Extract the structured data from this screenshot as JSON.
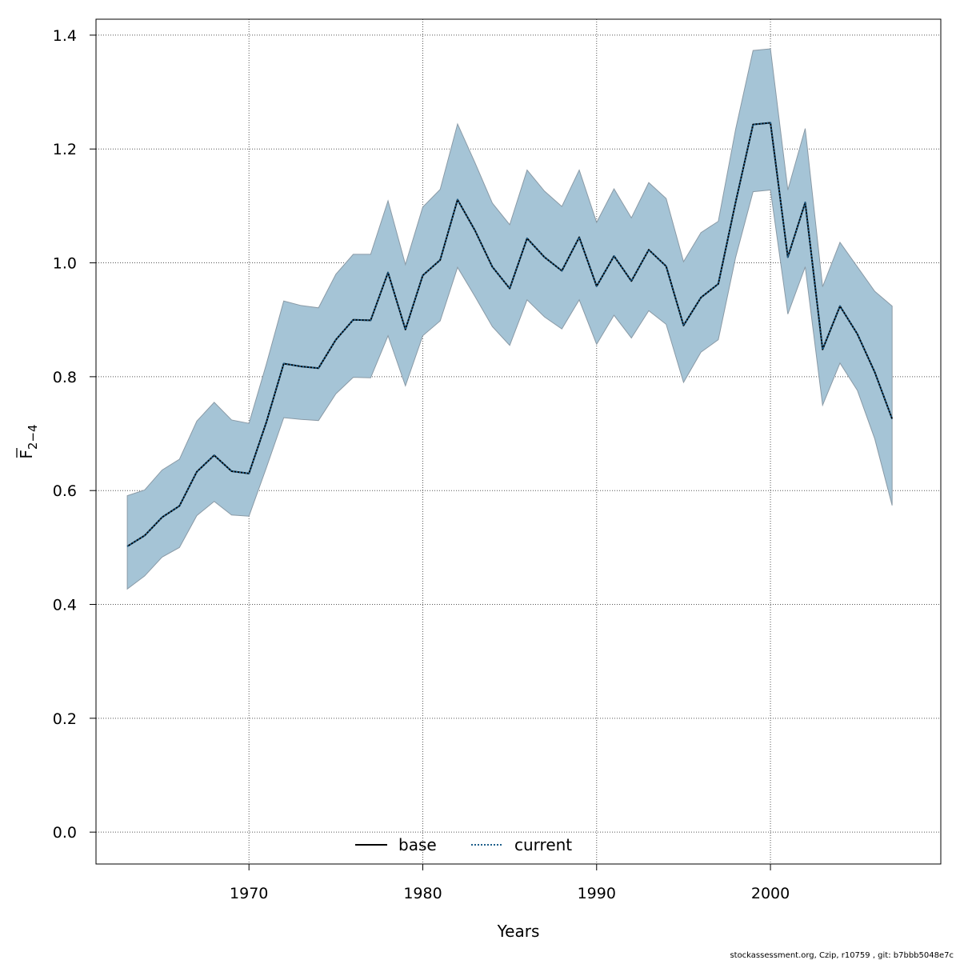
{
  "chart_data": {
    "type": "line",
    "xlabel": "Years",
    "ylabel": "F",
    "ylabel_subscript": "2−4",
    "xlim": [
      1961.2,
      2009.8
    ],
    "ylim": [
      -0.056,
      1.428
    ],
    "x_ticks": [
      1970,
      1980,
      1990,
      2000
    ],
    "y_ticks": [
      0.0,
      0.2,
      0.4,
      0.6,
      0.8,
      1.0,
      1.2,
      1.4
    ],
    "y_tick_labels": [
      "0.0",
      "0.2",
      "0.4",
      "0.6",
      "0.8",
      "1.0",
      "1.2",
      "1.4"
    ],
    "grid": true,
    "legend_position": "bottom-center",
    "x": [
      1963,
      1964,
      1965,
      1966,
      1967,
      1968,
      1969,
      1970,
      1971,
      1972,
      1973,
      1974,
      1975,
      1976,
      1977,
      1978,
      1979,
      1980,
      1981,
      1982,
      1983,
      1984,
      1985,
      1986,
      1987,
      1988,
      1989,
      1990,
      1991,
      1992,
      1993,
      1994,
      1995,
      1996,
      1997,
      1998,
      1999,
      2000,
      2001,
      2002,
      2003,
      2004,
      2005,
      2006,
      2007
    ],
    "series": [
      {
        "name": "base",
        "style": "solid",
        "color": "#000000",
        "values": [
          0.502,
          0.521,
          0.553,
          0.573,
          0.633,
          0.662,
          0.634,
          0.63,
          0.72,
          0.823,
          0.818,
          0.815,
          0.865,
          0.9,
          0.899,
          0.983,
          0.883,
          0.978,
          1.005,
          1.111,
          1.057,
          0.993,
          0.955,
          1.043,
          1.01,
          0.986,
          1.045,
          0.959,
          1.012,
          0.968,
          1.023,
          0.994,
          0.89,
          0.939,
          0.963,
          1.107,
          1.243,
          1.246,
          1.01,
          1.106,
          0.848,
          0.924,
          0.875,
          0.808,
          0.726
        ]
      },
      {
        "name": "current",
        "style": "dotted",
        "color": "#1f5f8b",
        "values": [
          0.502,
          0.521,
          0.553,
          0.573,
          0.633,
          0.662,
          0.634,
          0.63,
          0.72,
          0.823,
          0.818,
          0.815,
          0.865,
          0.9,
          0.899,
          0.983,
          0.883,
          0.978,
          1.005,
          1.111,
          1.057,
          0.993,
          0.955,
          1.043,
          1.01,
          0.986,
          1.045,
          0.959,
          1.012,
          0.968,
          1.023,
          0.994,
          0.89,
          0.939,
          0.963,
          1.107,
          1.243,
          1.246,
          1.01,
          1.106,
          0.848,
          0.924,
          0.875,
          0.808,
          0.726
        ]
      }
    ],
    "confidence_band": {
      "color": "#a5c4d6",
      "edge_color": "#8a9aa6",
      "lower": [
        0.427,
        0.45,
        0.483,
        0.5,
        0.556,
        0.581,
        0.557,
        0.555,
        0.64,
        0.728,
        0.725,
        0.723,
        0.77,
        0.799,
        0.798,
        0.872,
        0.784,
        0.872,
        0.898,
        0.992,
        0.941,
        0.888,
        0.855,
        0.935,
        0.905,
        0.884,
        0.935,
        0.857,
        0.908,
        0.868,
        0.916,
        0.892,
        0.79,
        0.843,
        0.865,
        1.01,
        1.125,
        1.128,
        0.91,
        0.993,
        0.75,
        0.824,
        0.776,
        0.691,
        0.574
      ],
      "upper": [
        0.591,
        0.601,
        0.636,
        0.655,
        0.722,
        0.755,
        0.724,
        0.718,
        0.822,
        0.933,
        0.925,
        0.921,
        0.98,
        1.015,
        1.015,
        1.109,
        0.997,
        1.098,
        1.129,
        1.244,
        1.176,
        1.105,
        1.067,
        1.163,
        1.126,
        1.099,
        1.163,
        1.071,
        1.13,
        1.079,
        1.141,
        1.113,
        1.002,
        1.053,
        1.073,
        1.235,
        1.373,
        1.376,
        1.128,
        1.236,
        0.958,
        1.036,
        0.993,
        0.95,
        0.924
      ]
    }
  },
  "footer": "stockassessment.org, Czip, r10759 , git: b7bbb5048e7c"
}
